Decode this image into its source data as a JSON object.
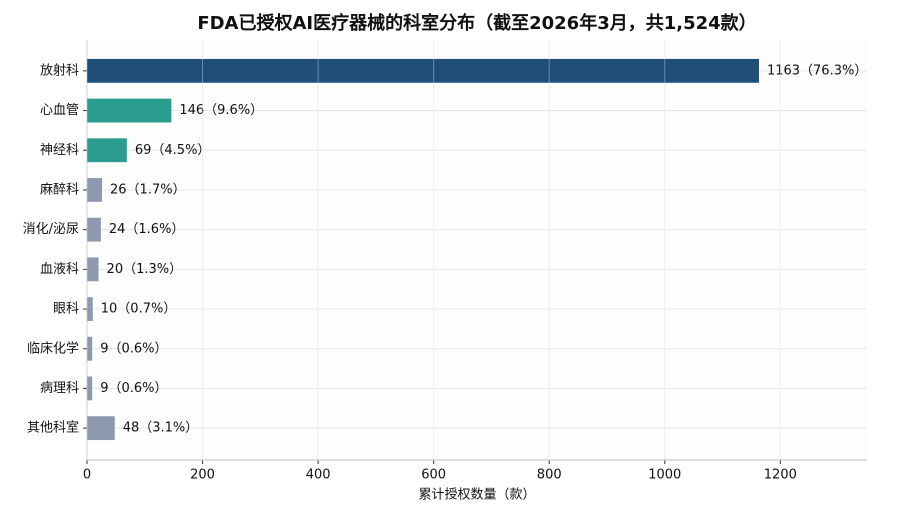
{
  "chart_data": {
    "type": "bar",
    "orientation": "horizontal",
    "title": "FDA已授权AI医疗器械的科室分布（截至2026年3月，共1,524款）",
    "xlabel": "累计授权数量（款）",
    "categories": [
      "放射科",
      "心血管",
      "神经科",
      "麻醉科",
      "消化/泌尿",
      "血液科",
      "眼科",
      "临床化学",
      "病理科",
      "其他科室"
    ],
    "values": [
      1163,
      146,
      69,
      26,
      24,
      20,
      10,
      9,
      9,
      48
    ],
    "value_labels": [
      "1163（76.3%）",
      "146（9.6%）",
      "69（4.5%）",
      "26（1.7%）",
      "24（1.6%）",
      "20（1.3%）",
      "10（0.7%）",
      "9（0.6%）",
      "9（0.6%）",
      "48（3.1%）"
    ],
    "colors": [
      "#1f4e79",
      "#2a9d8f",
      "#2a9d8f",
      "#8d99ae",
      "#8d99ae",
      "#8d99ae",
      "#8d99ae",
      "#8d99ae",
      "#8d99ae",
      "#8d99ae"
    ],
    "xlim": [
      0,
      1350
    ],
    "xticks": [
      0,
      200,
      400,
      600,
      800,
      1000,
      1200
    ],
    "grid": true
  }
}
